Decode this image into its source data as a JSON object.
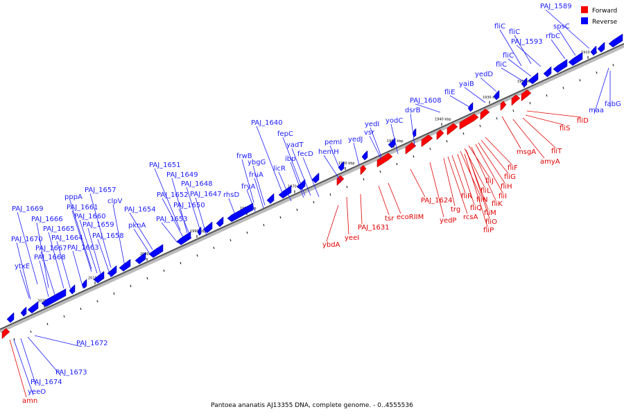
{
  "legend": {
    "forward_label": "Forward",
    "reverse_label": "Reverse",
    "forward_color": "#ff0000",
    "reverse_color": "#0000ff"
  },
  "caption": "Pantoea ananatis AJ13355 DNA, complete genome. - 0..4555536",
  "axis_ticks": [
    "1910 kbp",
    "1920 kbp",
    "1930 kbp",
    "1940 kbp",
    "1950 kbp",
    "1960 kbp",
    "1970 kbp",
    "1980 kbp",
    "1990 kbp",
    "2000 kbp",
    "2010 kbp",
    "2020 kbp"
  ],
  "reverse_genes": [
    "PAJ_1589",
    "spsC",
    "rfbC",
    "fliC",
    "fliC",
    "PAJ_1593",
    "fliC",
    "fliC",
    "yedD",
    "yaiB",
    "fliE",
    "PAJ_1608",
    "dsrB",
    "yodC",
    "yedI",
    "vsr",
    "yedJ",
    "pemI",
    "hemH",
    "PAJ_1640",
    "fepC",
    "yadT",
    "ibp",
    "fecD",
    "licR",
    "frwB",
    "ybgG",
    "fruA",
    "fryA",
    "rhsD",
    "PAJ_1651",
    "PAJ_1649",
    "PAJ_1648",
    "PAJ_1652",
    "PAJ_1647",
    "PAJ_1650",
    "PAJ_1653",
    "PAJ_1654",
    "pknA",
    "PAJ_1657",
    "clpV",
    "pppA",
    "PAJ_1661",
    "PAJ_1660",
    "PAJ_1659",
    "PAJ_1658",
    "PAJ_1669",
    "PAJ_1666",
    "PAJ_1665",
    "PAJ_1664",
    "PAJ_1670",
    "PAJ_1667",
    "PAJ_1663",
    "PAJ_1668",
    "ytxE",
    "maa",
    "fabG",
    "PAJ_1672",
    "PAJ_1673",
    "PAJ_1674",
    "yeeO"
  ],
  "forward_genes": [
    "fliD",
    "fliS",
    "fliT",
    "amyA",
    "msgA",
    "fliF",
    "fliG",
    "fliH",
    "fliI",
    "fliJ",
    "fliK",
    "fliL",
    "fliM",
    "fliN",
    "fliO",
    "fliP",
    "fliQ",
    "fliR",
    "rcsA",
    "trg",
    "yedP",
    "PAJ_1624",
    "ecoRIIM",
    "tsr",
    "PAJ_1631",
    "yeeI",
    "ybdA",
    "amn"
  ]
}
